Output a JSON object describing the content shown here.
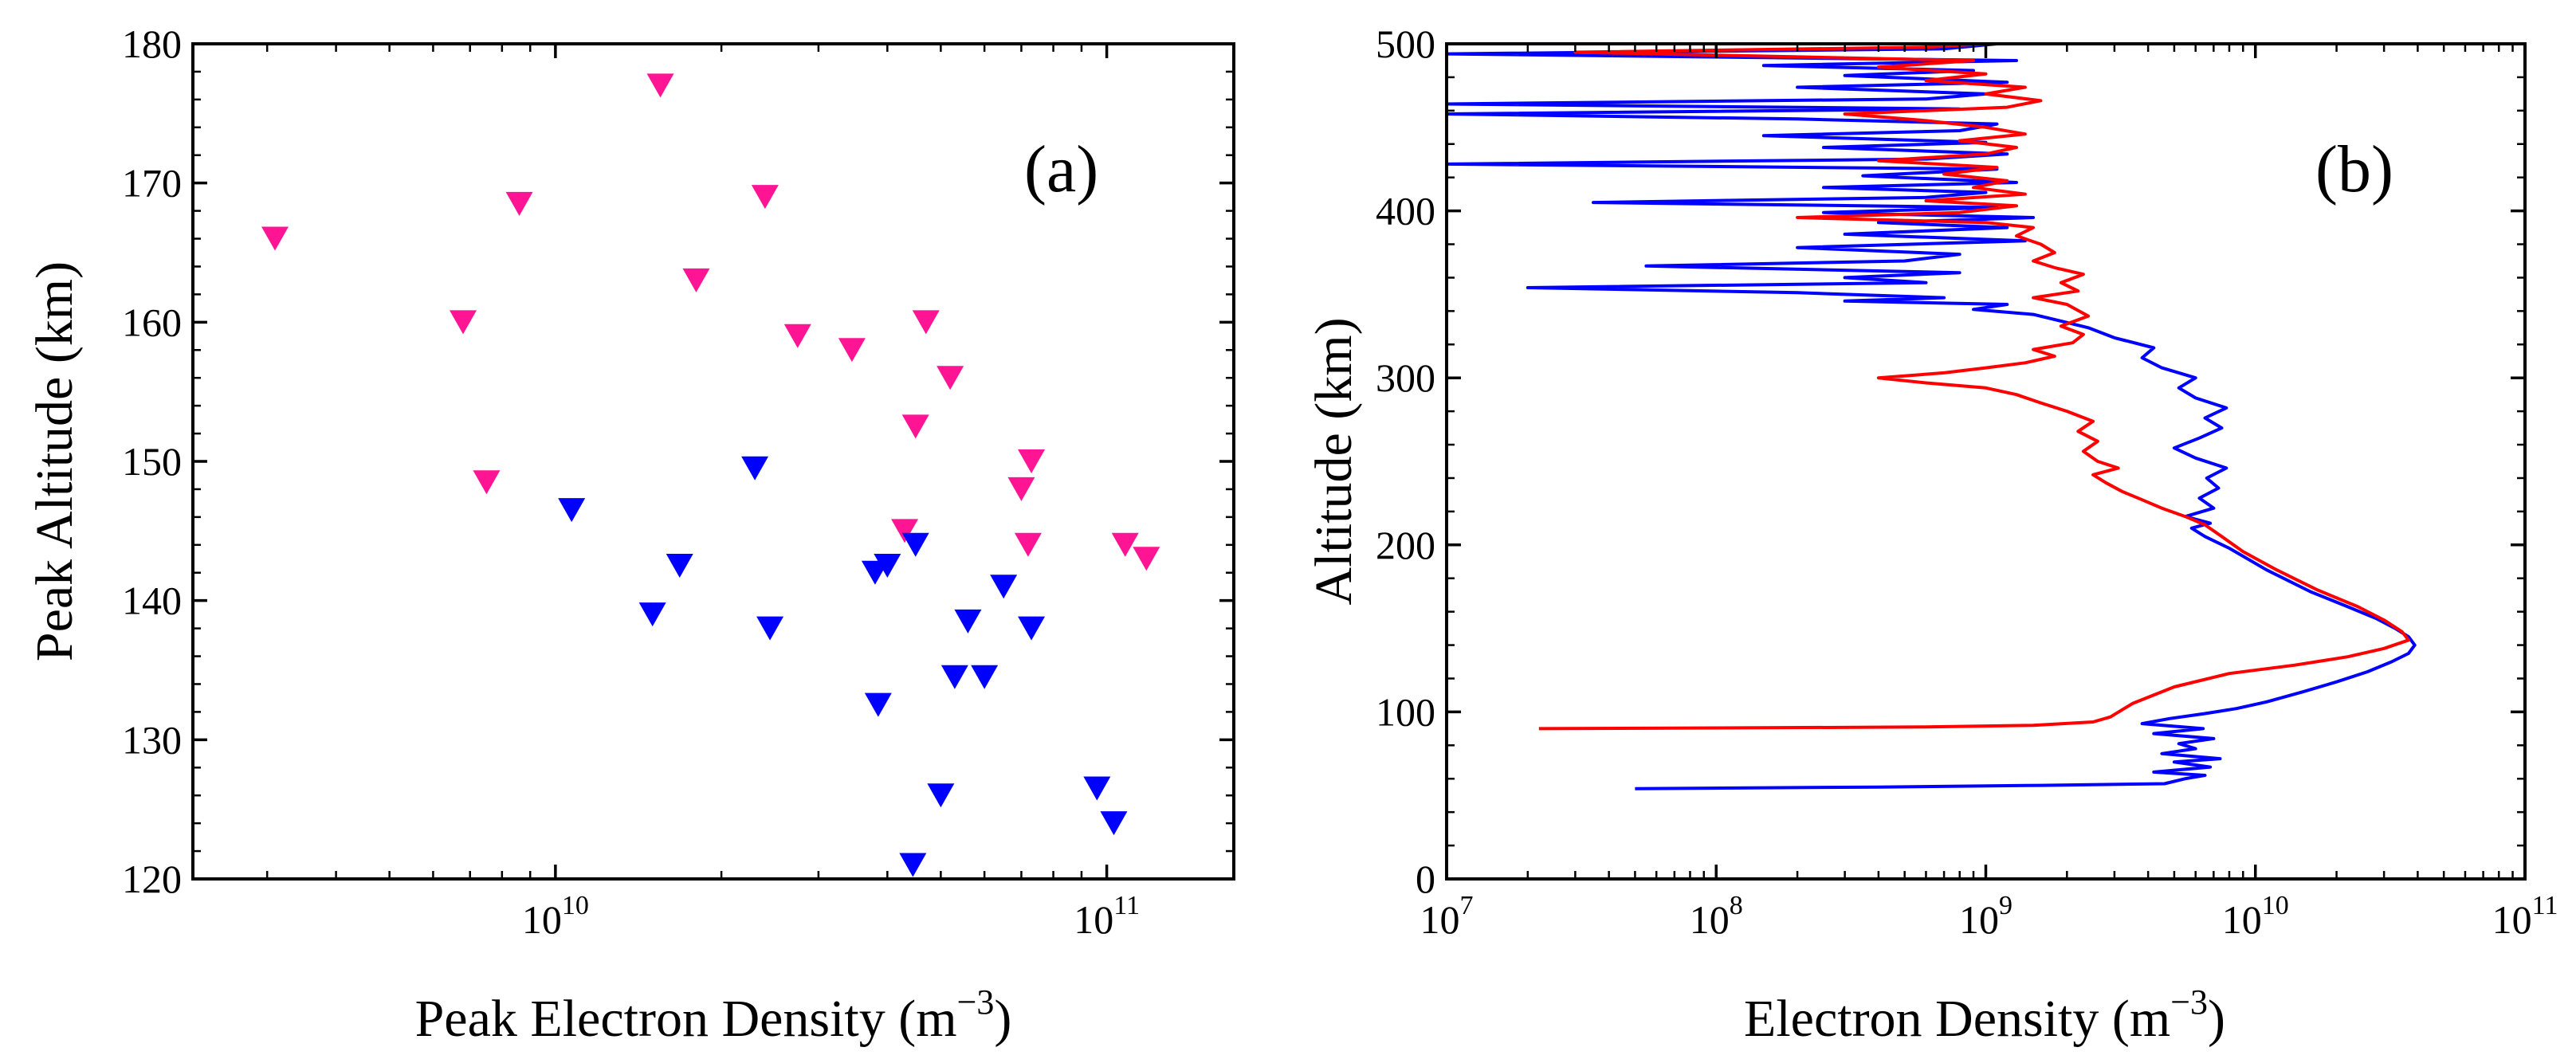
{
  "chart_data": [
    {
      "type": "scatter",
      "panel_label": "(a)",
      "xlabel": "Peak Electron Density (m",
      "xlabel_unit_exponent": "−3",
      "xlabel_suffix": ")",
      "ylabel": "Peak Altitude (km)",
      "xscale": "log",
      "xlim": [
        2200000000.0,
        170000000000.0
      ],
      "ylim": [
        120,
        180
      ],
      "xticks": [
        {
          "value": 10000000000.0,
          "base": "10",
          "exp": "10"
        },
        {
          "value": 100000000000.0,
          "base": "10",
          "exp": "11"
        }
      ],
      "yticks": [
        "120",
        "130",
        "140",
        "150",
        "160",
        "170",
        "180"
      ],
      "marker": "triangle-down",
      "series": [
        {
          "name": "pink",
          "color": "#ff1493",
          "points": [
            [
              3100000000.0,
              166
            ],
            [
              6800000000.0,
              160
            ],
            [
              7500000000.0,
              148.5
            ],
            [
              8600000000.0,
              168.5
            ],
            [
              15500000000.0,
              177
            ],
            [
              18000000000.0,
              163
            ],
            [
              24000000000.0,
              169
            ],
            [
              27500000000.0,
              159
            ],
            [
              34500000000.0,
              158
            ],
            [
              45000000000.0,
              152.5
            ],
            [
              43000000000.0,
              145
            ],
            [
              47000000000.0,
              160
            ],
            [
              52000000000.0,
              156
            ],
            [
              70000000000.0,
              148
            ],
            [
              73000000000.0,
              150
            ],
            [
              72000000000.0,
              144
            ],
            [
              108000000000.0,
              144
            ],
            [
              118000000000.0,
              143
            ]
          ]
        },
        {
          "name": "blue",
          "color": "#0000ff",
          "points": [
            [
              10700000000.0,
              146.5
            ],
            [
              15000000000.0,
              139
            ],
            [
              16800000000.0,
              142.5
            ],
            [
              23000000000.0,
              149.5
            ],
            [
              24500000000.0,
              138
            ],
            [
              38000000000.0,
              142
            ],
            [
              40000000000.0,
              142.5
            ],
            [
              38500000000.0,
              132.5
            ],
            [
              45000000000.0,
              144
            ],
            [
              44500000000.0,
              121
            ],
            [
              50000000000.0,
              126
            ],
            [
              53000000000.0,
              134.5
            ],
            [
              56000000000.0,
              138.5
            ],
            [
              60000000000.0,
              134.5
            ],
            [
              65000000000.0,
              141
            ],
            [
              73000000000.0,
              138
            ],
            [
              96000000000.0,
              126.5
            ],
            [
              103000000000.0,
              124
            ]
          ]
        }
      ]
    },
    {
      "type": "line",
      "panel_label": "(b)",
      "xlabel": "Electron Density (m",
      "xlabel_unit_exponent": "−3",
      "xlabel_suffix": ")",
      "ylabel": "Altitude (km)",
      "xscale": "log",
      "xlim": [
        10000000.0,
        100000000000.0
      ],
      "ylim": [
        0,
        500
      ],
      "xticks": [
        {
          "value": 10000000.0,
          "base": "10",
          "exp": "7"
        },
        {
          "value": 100000000.0,
          "base": "10",
          "exp": "8"
        },
        {
          "value": 1000000000.0,
          "base": "10",
          "exp": "9"
        },
        {
          "value": 10000000000.0,
          "base": "10",
          "exp": "10"
        },
        {
          "value": 100000000000.0,
          "base": "10",
          "exp": "11"
        }
      ],
      "yticks": [
        "0",
        "100",
        "200",
        "300",
        "400",
        "500"
      ],
      "series": [
        {
          "name": "blue",
          "color": "#0000ff",
          "points": [
            [
              50000000.0,
              54
            ],
            [
              400000000.0,
              55
            ],
            [
              1600000000.0,
              56
            ],
            [
              4600000000.0,
              57
            ],
            [
              5500000000.0,
              60
            ],
            [
              6500000000.0,
              62
            ],
            [
              4200000000.0,
              64
            ],
            [
              6800000000.0,
              67
            ],
            [
              5000000000.0,
              70
            ],
            [
              7400000000.0,
              72
            ],
            [
              4500000000.0,
              75
            ],
            [
              6000000000.0,
              78
            ],
            [
              5200000000.0,
              81
            ],
            [
              7000000000.0,
              84
            ],
            [
              4200000000.0,
              87
            ],
            [
              6400000000.0,
              90
            ],
            [
              3800000000.0,
              93
            ],
            [
              4800000000.0,
              96
            ],
            [
              6500000000.0,
              99
            ],
            [
              8500000000.0,
              102
            ],
            [
              11000000000.0,
              106
            ],
            [
              15000000000.0,
              112
            ],
            [
              20000000000.0,
              118
            ],
            [
              26000000000.0,
              124
            ],
            [
              32000000000.0,
              130
            ],
            [
              37000000000.0,
              135
            ],
            [
              39000000000.0,
              140
            ],
            [
              37000000000.0,
              145
            ],
            [
              33000000000.0,
              150
            ],
            [
              28000000000.0,
              156
            ],
            [
              22000000000.0,
              163
            ],
            [
              16000000000.0,
              172
            ],
            [
              11000000000.0,
              185
            ],
            [
              8000000000.0,
              198
            ],
            [
              6500000000.0,
              205
            ],
            [
              5800000000.0,
              210
            ],
            [
              6800000000.0,
              213
            ],
            [
              5500000000.0,
              217
            ],
            [
              7000000000.0,
              222
            ],
            [
              6200000000.0,
              228
            ],
            [
              7300000000.0,
              234
            ],
            [
              6600000000.0,
              240
            ],
            [
              7800000000.0,
              246
            ],
            [
              6000000000.0,
              252
            ],
            [
              5000000000.0,
              258
            ],
            [
              6200000000.0,
              264
            ],
            [
              7500000000.0,
              270
            ],
            [
              6500000000.0,
              276
            ],
            [
              7800000000.0,
              282
            ],
            [
              6000000000.0,
              288
            ],
            [
              5200000000.0,
              294
            ],
            [
              6000000000.0,
              300
            ],
            [
              4500000000.0,
              306
            ],
            [
              3800000000.0,
              312
            ],
            [
              4200000000.0,
              318
            ],
            [
              3000000000.0,
              324
            ],
            [
              2400000000.0,
              330
            ],
            [
              1900000000.0,
              334
            ],
            [
              1500000000.0,
              338
            ],
            [
              900000000.0,
              341
            ],
            [
              1200000000.0,
              344
            ],
            [
              300000000.0,
              346
            ],
            [
              700000000.0,
              348
            ],
            [
              200000000.0,
              351
            ],
            [
              20000000.0,
              354
            ],
            [
              600000000.0,
              357
            ],
            [
              300000000.0,
              360
            ],
            [
              800000000.0,
              363
            ],
            [
              55000000.0,
              367
            ],
            [
              500000000.0,
              370
            ],
            [
              800000000.0,
              374
            ],
            [
              200000000.0,
              378
            ],
            [
              1400000000.0,
              382
            ],
            [
              300000000.0,
              386
            ],
            [
              1200000000.0,
              390
            ],
            [
              400000000.0,
              393
            ],
            [
              1500000000.0,
              396
            ],
            [
              250000000.0,
              399
            ],
            [
              1100000000.0,
              402
            ],
            [
              35000000.0,
              405
            ],
            [
              600000000.0,
              408
            ],
            [
              1000000000.0,
              411
            ],
            [
              250000000.0,
              414
            ],
            [
              1300000000.0,
              417
            ],
            [
              350000000.0,
              421
            ],
            [
              1100000000.0,
              425
            ],
            [
              10000000.0,
              428
            ],
            [
              600000000.0,
              431
            ],
            [
              1200000000.0,
              434
            ],
            [
              250000000.0,
              438
            ],
            [
              1000000000.0,
              441
            ],
            [
              150000000.0,
              445
            ],
            [
              800000000.0,
              448
            ],
            [
              1100000000.0,
              452
            ],
            [
              200000000.0,
              455
            ],
            [
              10000000.0,
              458
            ],
            [
              800000000.0,
              461
            ],
            [
              10000000.0,
              464
            ],
            [
              600000000.0,
              467
            ],
            [
              1000000000.0,
              470
            ],
            [
              200000000.0,
              474
            ],
            [
              1200000000.0,
              477
            ],
            [
              300000000.0,
              481
            ],
            [
              900000000.0,
              484
            ],
            [
              150000000.0,
              487
            ],
            [
              1300000000.0,
              490
            ],
            [
              10000000.0,
              494
            ],
            [
              700000000.0,
              497
            ],
            [
              1100000000.0,
              500
            ]
          ]
        },
        {
          "name": "red",
          "color": "#ff0000",
          "points": [
            [
              22000000.0,
              90
            ],
            [
              150000000.0,
              90.5
            ],
            [
              600000000.0,
              91
            ],
            [
              1500000000.0,
              92
            ],
            [
              2500000000.0,
              94
            ],
            [
              2900000000.0,
              97
            ],
            [
              3500000000.0,
              105
            ],
            [
              5000000000.0,
              115
            ],
            [
              8000000000.0,
              123
            ],
            [
              14000000000.0,
              128
            ],
            [
              22000000000.0,
              133
            ],
            [
              30000000000.0,
              138
            ],
            [
              37000000000.0,
              143
            ],
            [
              35000000000.0,
              148
            ],
            [
              30000000000.0,
              155
            ],
            [
              24000000000.0,
              163
            ],
            [
              17000000000.0,
              173
            ],
            [
              12000000000.0,
              185
            ],
            [
              9000000000.0,
              196
            ],
            [
              7500000000.0,
              205
            ],
            [
              6500000000.0,
              212
            ],
            [
              5500000000.0,
              217
            ],
            [
              4500000000.0,
              222
            ],
            [
              3800000000.0,
              227
            ],
            [
              3200000000.0,
              232
            ],
            [
              2800000000.0,
              237
            ],
            [
              2500000000.0,
              242
            ],
            [
              3100000000.0,
              246
            ],
            [
              2600000000.0,
              250
            ],
            [
              2300000000.0,
              256
            ],
            [
              2600000000.0,
              262
            ],
            [
              2200000000.0,
              268
            ],
            [
              2500000000.0,
              274
            ],
            [
              2000000000.0,
              280
            ],
            [
              1600000000.0,
              285
            ],
            [
              1300000000.0,
              290
            ],
            [
              1000000000.0,
              294
            ],
            [
              600000000.0,
              297
            ],
            [
              400000000.0,
              300
            ],
            [
              700000000.0,
              303
            ],
            [
              1000000000.0,
              306
            ],
            [
              1400000000.0,
              309
            ],
            [
              1800000000.0,
              313
            ],
            [
              1500000000.0,
              317
            ],
            [
              2100000000.0,
              321
            ],
            [
              2300000000.0,
              326
            ],
            [
              1900000000.0,
              331
            ],
            [
              2400000000.0,
              337
            ],
            [
              2000000000.0,
              344
            ],
            [
              1500000000.0,
              348
            ],
            [
              2200000000.0,
              352
            ],
            [
              1900000000.0,
              357
            ],
            [
              2300000000.0,
              362
            ],
            [
              1800000000.0,
              366
            ],
            [
              1500000000.0,
              370
            ],
            [
              1800000000.0,
              375
            ],
            [
              1600000000.0,
              380
            ],
            [
              1300000000.0,
              385
            ],
            [
              1500000000.0,
              390
            ],
            [
              1000000000.0,
              393
            ],
            [
              200000000.0,
              396
            ],
            [
              800000000.0,
              399
            ],
            [
              1300000000.0,
              403
            ],
            [
              600000000.0,
              406
            ],
            [
              1400000000.0,
              410
            ],
            [
              900000000.0,
              414
            ],
            [
              1200000000.0,
              418
            ],
            [
              700000000.0,
              422
            ],
            [
              1100000000.0,
              426
            ],
            [
              400000000.0,
              430
            ],
            [
              1000000000.0,
              434
            ],
            [
              1300000000.0,
              438
            ],
            [
              800000000.0,
              442
            ],
            [
              1400000000.0,
              446
            ],
            [
              1000000000.0,
              450
            ],
            [
              600000000.0,
              454
            ],
            [
              300000000.0,
              458
            ],
            [
              1200000000.0,
              462
            ],
            [
              1600000000.0,
              466
            ],
            [
              1000000000.0,
              470
            ],
            [
              1400000000.0,
              474
            ],
            [
              600000000.0,
              478
            ],
            [
              1000000000.0,
              482
            ],
            [
              400000000.0,
              486
            ],
            [
              900000000.0,
              490
            ],
            [
              30000000.0,
              495
            ],
            [
              600000000.0,
              498
            ],
            [
              1000000000.0,
              500
            ]
          ]
        }
      ]
    }
  ]
}
